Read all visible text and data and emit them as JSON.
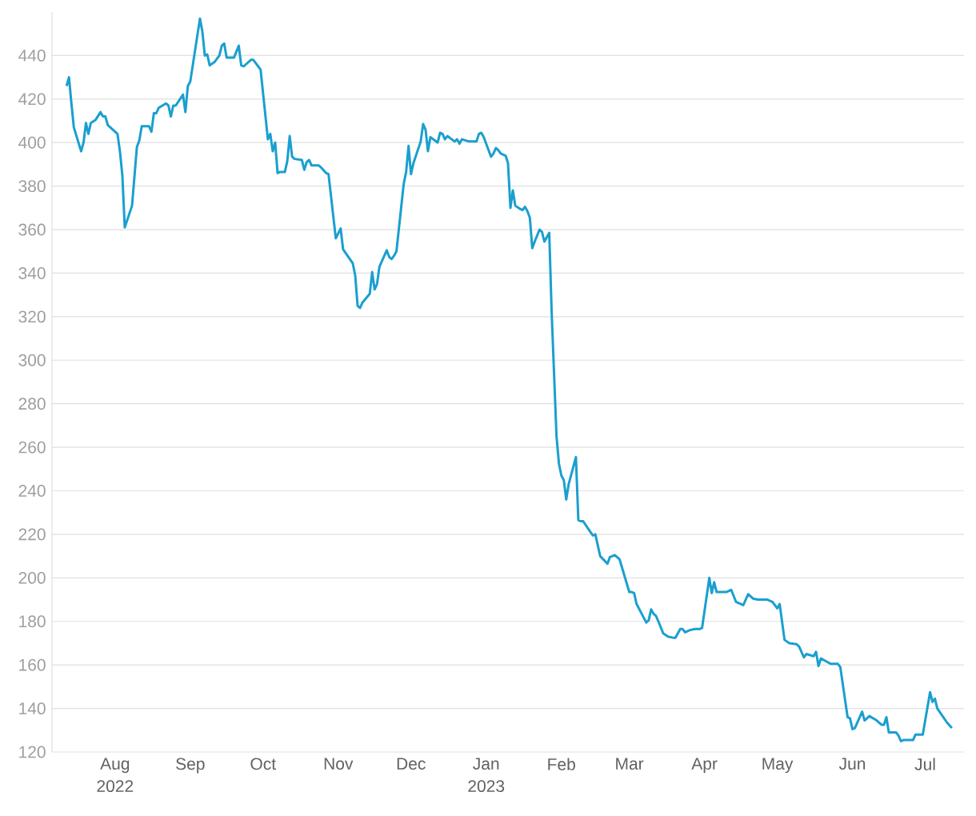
{
  "chart_data": {
    "type": "line",
    "color": "#1a9fcf",
    "grid": "y",
    "xlim": [
      "2022-07-06",
      "2023-07-17"
    ],
    "ylim": [
      120,
      460
    ],
    "yticks": [
      120,
      140,
      160,
      180,
      200,
      220,
      240,
      260,
      280,
      300,
      320,
      340,
      360,
      380,
      400,
      420,
      440
    ],
    "xticks": [
      {
        "value": "2022-08-01",
        "label": "Aug 2022"
      },
      {
        "value": "2022-09-01",
        "label": "Sep"
      },
      {
        "value": "2022-10-01",
        "label": "Oct"
      },
      {
        "value": "2022-11-01",
        "label": "Nov"
      },
      {
        "value": "2022-12-01",
        "label": "Dec"
      },
      {
        "value": "2023-01-01",
        "label": "Jan 2023"
      },
      {
        "value": "2023-02-01",
        "label": "Feb"
      },
      {
        "value": "2023-03-01",
        "label": "Mar"
      },
      {
        "value": "2023-04-01",
        "label": "Apr"
      },
      {
        "value": "2023-05-01",
        "label": "May"
      },
      {
        "value": "2023-06-01",
        "label": "Jun"
      },
      {
        "value": "2023-07-01",
        "label": "Jul"
      }
    ],
    "x": [
      "2022-07-12",
      "2022-07-13",
      "2022-07-14",
      "2022-07-15",
      "2022-07-18",
      "2022-07-19",
      "2022-07-20",
      "2022-07-21",
      "2022-07-22",
      "2022-07-24",
      "2022-07-26",
      "2022-07-27",
      "2022-07-28",
      "2022-07-29",
      "2022-08-02",
      "2022-08-03",
      "2022-08-04",
      "2022-08-05",
      "2022-08-08",
      "2022-08-10",
      "2022-08-11",
      "2022-08-12",
      "2022-08-15",
      "2022-08-16",
      "2022-08-17",
      "2022-08-18",
      "2022-08-19",
      "2022-08-22",
      "2022-08-23",
      "2022-08-24",
      "2022-08-25",
      "2022-08-26",
      "2022-08-29",
      "2022-08-30",
      "2022-08-31",
      "2022-09-01",
      "2022-09-05",
      "2022-09-06",
      "2022-09-07",
      "2022-09-08",
      "2022-09-09",
      "2022-09-11",
      "2022-09-13",
      "2022-09-14",
      "2022-09-15",
      "2022-09-16",
      "2022-09-19",
      "2022-09-21",
      "2022-09-22",
      "2022-09-23",
      "2022-09-26",
      "2022-09-27",
      "2022-09-28",
      "2022-09-29",
      "2022-09-30",
      "2022-10-03",
      "2022-10-04",
      "2022-10-05",
      "2022-10-06",
      "2022-10-07",
      "2022-10-08",
      "2022-10-10",
      "2022-10-11",
      "2022-10-12",
      "2022-10-13",
      "2022-10-14",
      "2022-10-17",
      "2022-10-18",
      "2022-10-19",
      "2022-10-20",
      "2022-10-21",
      "2022-10-24",
      "2022-10-25",
      "2022-10-27",
      "2022-10-28",
      "2022-10-31",
      "2022-11-02",
      "2022-11-03",
      "2022-11-07",
      "2022-11-08",
      "2022-11-09",
      "2022-11-10",
      "2022-11-11",
      "2022-11-14",
      "2022-11-15",
      "2022-11-16",
      "2022-11-17",
      "2022-11-18",
      "2022-11-21",
      "2022-11-22",
      "2022-11-23",
      "2022-11-24",
      "2022-11-25",
      "2022-11-28",
      "2022-11-29",
      "2022-11-30",
      "2022-12-01",
      "2022-12-02",
      "2022-12-05",
      "2022-12-06",
      "2022-12-07",
      "2022-12-08",
      "2022-12-09",
      "2022-12-12",
      "2022-12-13",
      "2022-12-14",
      "2022-12-15",
      "2022-12-16",
      "2022-12-19",
      "2022-12-20",
      "2022-12-21",
      "2022-12-22",
      "2022-12-25",
      "2022-12-26",
      "2022-12-28",
      "2022-12-29",
      "2022-12-30",
      "2022-12-31",
      "2023-01-03",
      "2023-01-04",
      "2023-01-05",
      "2023-01-06",
      "2023-01-07",
      "2023-01-09",
      "2023-01-10",
      "2023-01-11",
      "2023-01-12",
      "2023-01-13",
      "2023-01-15",
      "2023-01-16",
      "2023-01-17",
      "2023-01-18",
      "2023-01-19",
      "2023-01-20",
      "2023-01-21",
      "2023-01-23",
      "2023-01-24",
      "2023-01-25",
      "2023-01-26",
      "2023-01-27",
      "2023-01-28",
      "2023-01-30",
      "2023-01-31",
      "2023-02-01",
      "2023-02-02",
      "2023-02-03",
      "2023-02-04",
      "2023-02-07",
      "2023-02-08",
      "2023-02-09",
      "2023-02-10",
      "2023-02-13",
      "2023-02-14",
      "2023-02-15",
      "2023-02-17",
      "2023-02-20",
      "2023-02-21",
      "2023-02-23",
      "2023-02-25",
      "2023-03-01",
      "2023-03-02",
      "2023-03-03",
      "2023-03-04",
      "2023-03-08",
      "2023-03-09",
      "2023-03-10",
      "2023-03-11",
      "2023-03-12",
      "2023-03-13",
      "2023-03-15",
      "2023-03-17",
      "2023-03-19",
      "2023-03-20",
      "2023-03-22",
      "2023-03-23",
      "2023-03-24",
      "2023-03-26",
      "2023-03-28",
      "2023-03-30",
      "2023-03-31",
      "2023-04-03",
      "2023-04-04",
      "2023-04-05",
      "2023-04-06",
      "2023-04-10",
      "2023-04-12",
      "2023-04-14",
      "2023-04-17",
      "2023-04-19",
      "2023-04-21",
      "2023-04-23",
      "2023-04-25",
      "2023-04-26",
      "2023-04-27",
      "2023-04-29",
      "2023-05-01",
      "2023-05-02",
      "2023-05-04",
      "2023-05-06",
      "2023-05-09",
      "2023-05-10",
      "2023-05-11",
      "2023-05-12",
      "2023-05-13",
      "2023-05-16",
      "2023-05-17",
      "2023-05-18",
      "2023-05-19",
      "2023-05-23",
      "2023-05-26",
      "2023-05-27",
      "2023-05-30",
      "2023-05-31",
      "2023-06-01",
      "2023-06-02",
      "2023-06-05",
      "2023-06-06",
      "2023-06-08",
      "2023-06-11",
      "2023-06-12",
      "2023-06-13",
      "2023-06-14",
      "2023-06-15",
      "2023-06-16",
      "2023-06-19",
      "2023-06-20",
      "2023-06-21",
      "2023-06-22",
      "2023-06-26",
      "2023-06-27",
      "2023-06-30",
      "2023-07-03",
      "2023-07-04",
      "2023-07-05",
      "2023-07-06",
      "2023-07-10",
      "2023-07-12"
    ],
    "values": [
      426,
      430,
      418,
      407,
      396,
      400,
      409,
      404,
      409,
      410.5,
      414,
      412,
      412,
      408,
      404,
      396,
      385,
      361,
      371,
      398,
      401,
      407.5,
      407.5,
      405,
      413.5,
      413.5,
      416,
      418,
      417,
      412,
      417,
      417,
      422,
      414,
      426,
      428,
      457,
      451,
      440,
      440.5,
      435.5,
      437,
      440,
      444.5,
      445.5,
      439,
      439,
      444.5,
      435.5,
      435,
      438,
      438,
      436.5,
      435,
      433.5,
      401.5,
      404,
      396,
      400,
      386,
      386.5,
      386.5,
      391.5,
      403,
      393.5,
      392.5,
      392,
      387.5,
      391,
      392,
      389.5,
      389.5,
      388.5,
      386,
      385.5,
      356,
      360.5,
      351,
      344.5,
      339,
      325,
      324,
      326.5,
      330.5,
      340.5,
      332.5,
      335,
      343,
      350.5,
      347.5,
      346.5,
      348,
      350,
      381,
      386.5,
      398.5,
      385.5,
      390.5,
      400.5,
      408.5,
      406,
      396,
      402.5,
      400,
      404.5,
      404,
      401.5,
      403,
      400.5,
      401.5,
      399.5,
      401.5,
      400.5,
      400.5,
      400.5,
      404,
      404.5,
      402.5,
      393.5,
      395,
      397.5,
      396.5,
      395,
      394,
      390.5,
      370,
      378,
      371,
      369.5,
      369,
      370.5,
      368.5,
      365.5,
      351.5,
      354.5,
      360,
      359,
      354.5,
      356.5,
      358.5,
      322,
      265,
      252.5,
      247,
      245,
      236,
      243,
      255.5,
      226.5,
      226,
      226,
      221,
      219.5,
      220,
      210,
      206.5,
      209.5,
      210.5,
      208.5,
      193.5,
      193.5,
      193,
      188,
      179.5,
      180.5,
      185.5,
      183.5,
      182.5,
      180,
      174.5,
      173,
      172.5,
      172.5,
      176.5,
      176.5,
      175,
      176,
      176.5,
      176.5,
      177,
      200,
      193,
      198,
      193.5,
      193.5,
      194.5,
      189,
      187.5,
      192.5,
      190.5,
      190,
      190,
      190,
      190,
      189,
      186,
      188,
      171.5,
      170,
      169.5,
      168.5,
      166,
      163.5,
      165,
      164,
      166,
      159.5,
      163,
      160.5,
      160.5,
      159,
      136,
      135.5,
      130.5,
      131,
      138.5,
      134.5,
      136.5,
      134.5,
      133.5,
      132.5,
      132.5,
      136,
      129,
      129,
      127.5,
      125,
      125.5,
      125.5,
      128,
      128,
      147.5,
      143,
      144.5,
      140,
      133.5,
      131
    ]
  }
}
